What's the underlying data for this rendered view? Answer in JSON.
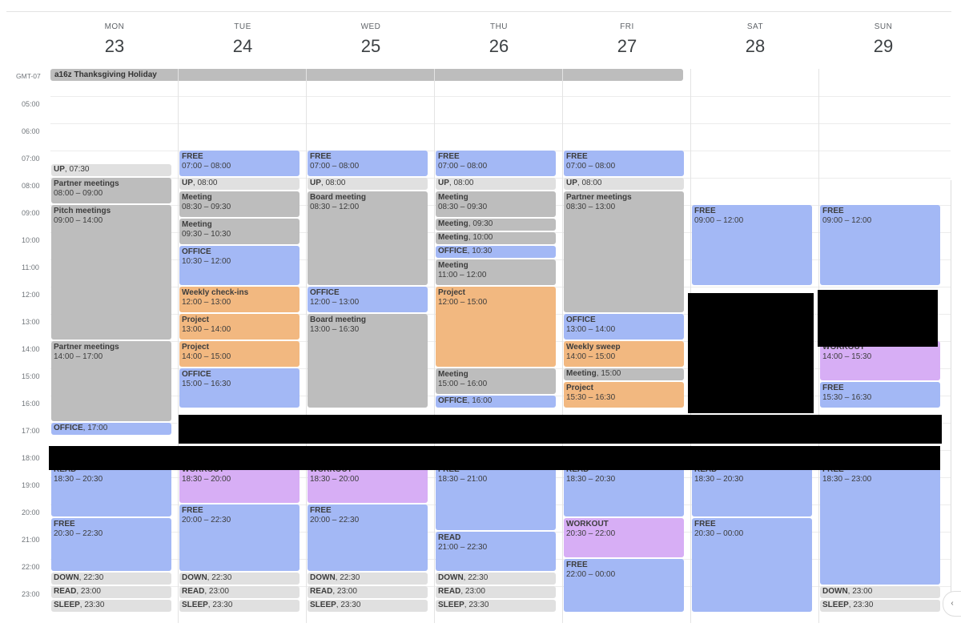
{
  "timezone": "GMT-07",
  "days": [
    {
      "dow": "MON",
      "num": "23"
    },
    {
      "dow": "TUE",
      "num": "24"
    },
    {
      "dow": "WED",
      "num": "25"
    },
    {
      "dow": "THU",
      "num": "26"
    },
    {
      "dow": "FRI",
      "num": "27"
    },
    {
      "dow": "SAT",
      "num": "28"
    },
    {
      "dow": "SUN",
      "num": "29"
    }
  ],
  "all_day_event": "a16z Thanksgiving Holiday",
  "time_labels": [
    "05:00",
    "06:00",
    "07:00",
    "08:00",
    "09:00",
    "10:00",
    "11:00",
    "12:00",
    "13:00",
    "14:00",
    "15:00",
    "16:00",
    "17:00",
    "18:00",
    "19:00",
    "20:00",
    "21:00",
    "22:00",
    "23:00"
  ],
  "events": [
    {
      "day": 0,
      "start": 7.5,
      "end": 8,
      "title": "UP",
      "time": "07:30",
      "color": "lgray",
      "inline": true
    },
    {
      "day": 0,
      "start": 8,
      "end": 9,
      "title": "Partner meetings",
      "time": "08:00 – 09:00",
      "color": "gray"
    },
    {
      "day": 0,
      "start": 9,
      "end": 14,
      "title": "Pitch meetings",
      "time": "09:00 – 14:00",
      "color": "gray"
    },
    {
      "day": 0,
      "start": 14,
      "end": 17,
      "title": "Partner meetings",
      "time": "14:00 – 17:00",
      "color": "gray"
    },
    {
      "day": 0,
      "start": 17,
      "end": 17.5,
      "title": "OFFICE",
      "time": "17:00",
      "color": "blue",
      "inline": true
    },
    {
      "day": 0,
      "start": 18.5,
      "end": 20.5,
      "title": "READ",
      "time": "18:30 – 20:30",
      "color": "blue"
    },
    {
      "day": 0,
      "start": 20.5,
      "end": 22.5,
      "title": "FREE",
      "time": "20:30 – 22:30",
      "color": "blue"
    },
    {
      "day": 0,
      "start": 22.5,
      "end": 23,
      "title": "DOWN",
      "time": "22:30",
      "color": "lgray",
      "inline": true
    },
    {
      "day": 0,
      "start": 23,
      "end": 23.5,
      "title": "READ",
      "time": "23:00",
      "color": "lgray",
      "inline": true
    },
    {
      "day": 0,
      "start": 23.5,
      "end": 24,
      "title": "SLEEP",
      "time": "23:30",
      "color": "lgray",
      "inline": true
    },
    {
      "day": 1,
      "start": 7,
      "end": 8,
      "title": "FREE",
      "time": "07:00 – 08:00",
      "color": "blue"
    },
    {
      "day": 1,
      "start": 8,
      "end": 8.5,
      "title": "UP",
      "time": "08:00",
      "color": "lgray",
      "inline": true
    },
    {
      "day": 1,
      "start": 8.5,
      "end": 9.5,
      "title": "Meeting",
      "time": "08:30 – 09:30",
      "color": "gray"
    },
    {
      "day": 1,
      "start": 9.5,
      "end": 10.5,
      "title": "Meeting",
      "time": "09:30 – 10:30",
      "color": "gray"
    },
    {
      "day": 1,
      "start": 10.5,
      "end": 12,
      "title": "OFFICE",
      "time": "10:30 – 12:00",
      "color": "blue"
    },
    {
      "day": 1,
      "start": 12,
      "end": 13,
      "title": "Weekly check-ins",
      "time": "12:00 – 13:00",
      "color": "orange"
    },
    {
      "day": 1,
      "start": 13,
      "end": 14,
      "title": "Project",
      "time": "13:00 – 14:00",
      "color": "orange"
    },
    {
      "day": 1,
      "start": 14,
      "end": 15,
      "title": "Project",
      "time": "14:00 – 15:00",
      "color": "orange"
    },
    {
      "day": 1,
      "start": 15,
      "end": 16.5,
      "title": "OFFICE",
      "time": "15:00 – 16:30",
      "color": "blue"
    },
    {
      "day": 1,
      "start": 18.5,
      "end": 20,
      "title": "WORKOUT",
      "time": "18:30 – 20:00",
      "color": "purple"
    },
    {
      "day": 1,
      "start": 20,
      "end": 22.5,
      "title": "FREE",
      "time": "20:00 – 22:30",
      "color": "blue"
    },
    {
      "day": 1,
      "start": 22.5,
      "end": 23,
      "title": "DOWN",
      "time": "22:30",
      "color": "lgray",
      "inline": true
    },
    {
      "day": 1,
      "start": 23,
      "end": 23.5,
      "title": "READ",
      "time": "23:00",
      "color": "lgray",
      "inline": true
    },
    {
      "day": 1,
      "start": 23.5,
      "end": 24,
      "title": "SLEEP",
      "time": "23:30",
      "color": "lgray",
      "inline": true
    },
    {
      "day": 2,
      "start": 7,
      "end": 8,
      "title": "FREE",
      "time": "07:00 – 08:00",
      "color": "blue"
    },
    {
      "day": 2,
      "start": 8,
      "end": 8.5,
      "title": "UP",
      "time": "08:00",
      "color": "lgray",
      "inline": true
    },
    {
      "day": 2,
      "start": 8.5,
      "end": 12,
      "title": "Board meeting",
      "time": "08:30 – 12:00",
      "color": "gray"
    },
    {
      "day": 2,
      "start": 12,
      "end": 13,
      "title": "OFFICE",
      "time": "12:00 – 13:00",
      "color": "blue"
    },
    {
      "day": 2,
      "start": 13,
      "end": 16.5,
      "title": "Board meeting",
      "time": "13:00 – 16:30",
      "color": "gray"
    },
    {
      "day": 2,
      "start": 18.5,
      "end": 20,
      "title": "WORKOUT",
      "time": "18:30 – 20:00",
      "color": "purple"
    },
    {
      "day": 2,
      "start": 20,
      "end": 22.5,
      "title": "FREE",
      "time": "20:00 – 22:30",
      "color": "blue"
    },
    {
      "day": 2,
      "start": 22.5,
      "end": 23,
      "title": "DOWN",
      "time": "22:30",
      "color": "lgray",
      "inline": true
    },
    {
      "day": 2,
      "start": 23,
      "end": 23.5,
      "title": "READ",
      "time": "23:00",
      "color": "lgray",
      "inline": true
    },
    {
      "day": 2,
      "start": 23.5,
      "end": 24,
      "title": "SLEEP",
      "time": "23:30",
      "color": "lgray",
      "inline": true
    },
    {
      "day": 3,
      "start": 7,
      "end": 8,
      "title": "FREE",
      "time": "07:00 – 08:00",
      "color": "blue"
    },
    {
      "day": 3,
      "start": 8,
      "end": 8.5,
      "title": "UP",
      "time": "08:00",
      "color": "lgray",
      "inline": true
    },
    {
      "day": 3,
      "start": 8.5,
      "end": 9.5,
      "title": "Meeting",
      "time": "08:30 – 09:30",
      "color": "gray"
    },
    {
      "day": 3,
      "start": 9.5,
      "end": 10,
      "title": "Meeting",
      "time": "09:30",
      "color": "gray",
      "inline": true
    },
    {
      "day": 3,
      "start": 10,
      "end": 10.5,
      "title": "Meeting",
      "time": "10:00",
      "color": "gray",
      "inline": true
    },
    {
      "day": 3,
      "start": 10.5,
      "end": 11,
      "title": "OFFICE",
      "time": "10:30",
      "color": "blue",
      "inline": true
    },
    {
      "day": 3,
      "start": 11,
      "end": 12,
      "title": "Meeting",
      "time": "11:00 – 12:00",
      "color": "gray"
    },
    {
      "day": 3,
      "start": 12,
      "end": 15,
      "title": "Project",
      "time": "12:00 – 15:00",
      "color": "orange"
    },
    {
      "day": 3,
      "start": 15,
      "end": 16,
      "title": "Meeting",
      "time": "15:00 – 16:00",
      "color": "gray"
    },
    {
      "day": 3,
      "start": 16,
      "end": 16.5,
      "title": "OFFICE",
      "time": "16:00",
      "color": "blue",
      "inline": true
    },
    {
      "day": 3,
      "start": 18.5,
      "end": 21,
      "title": "FREE",
      "time": "18:30 – 21:00",
      "color": "blue"
    },
    {
      "day": 3,
      "start": 21,
      "end": 22.5,
      "title": "READ",
      "time": "21:00 – 22:30",
      "color": "blue"
    },
    {
      "day": 3,
      "start": 22.5,
      "end": 23,
      "title": "DOWN",
      "time": "22:30",
      "color": "lgray",
      "inline": true
    },
    {
      "day": 3,
      "start": 23,
      "end": 23.5,
      "title": "READ",
      "time": "23:00",
      "color": "lgray",
      "inline": true
    },
    {
      "day": 3,
      "start": 23.5,
      "end": 24,
      "title": "SLEEP",
      "time": "23:30",
      "color": "lgray",
      "inline": true
    },
    {
      "day": 4,
      "start": 7,
      "end": 8,
      "title": "FREE",
      "time": "07:00 – 08:00",
      "color": "blue"
    },
    {
      "day": 4,
      "start": 8,
      "end": 8.5,
      "title": "UP",
      "time": "08:00",
      "color": "lgray",
      "inline": true
    },
    {
      "day": 4,
      "start": 8.5,
      "end": 13,
      "title": "Partner meetings",
      "time": "08:30 – 13:00",
      "color": "gray"
    },
    {
      "day": 4,
      "start": 13,
      "end": 14,
      "title": "OFFICE",
      "time": "13:00 – 14:00",
      "color": "blue"
    },
    {
      "day": 4,
      "start": 14,
      "end": 15,
      "title": "Weekly sweep",
      "time": "14:00 – 15:00",
      "color": "orange"
    },
    {
      "day": 4,
      "start": 15,
      "end": 15.5,
      "title": "Meeting",
      "time": "15:00",
      "color": "gray",
      "inline": true
    },
    {
      "day": 4,
      "start": 15.5,
      "end": 16.5,
      "title": "Project",
      "time": "15:30 – 16:30",
      "color": "orange"
    },
    {
      "day": 4,
      "start": 18.5,
      "end": 20.5,
      "title": "READ",
      "time": "18:30 – 20:30",
      "color": "blue"
    },
    {
      "day": 4,
      "start": 20.5,
      "end": 22,
      "title": "WORKOUT",
      "time": "20:30 – 22:00",
      "color": "purple"
    },
    {
      "day": 4,
      "start": 22,
      "end": 24,
      "title": "FREE",
      "time": "22:00 – 00:00",
      "color": "blue"
    },
    {
      "day": 5,
      "start": 9,
      "end": 12,
      "title": "FREE",
      "time": "09:00 – 12:00",
      "color": "blue"
    },
    {
      "day": 5,
      "start": 18.5,
      "end": 20.5,
      "title": "READ",
      "time": "18:30 – 20:30",
      "color": "blue"
    },
    {
      "day": 5,
      "start": 20.5,
      "end": 24,
      "title": "FREE",
      "time": "20:30 – 00:00",
      "color": "blue"
    },
    {
      "day": 6,
      "start": 9,
      "end": 12,
      "title": "FREE",
      "time": "09:00 – 12:00",
      "color": "blue"
    },
    {
      "day": 6,
      "start": 14,
      "end": 15.5,
      "title": "WORKOUT",
      "time": "14:00 – 15:30",
      "color": "purple"
    },
    {
      "day": 6,
      "start": 15.5,
      "end": 16.5,
      "title": "FREE",
      "time": "15:30 – 16:30",
      "color": "blue"
    },
    {
      "day": 6,
      "start": 18.5,
      "end": 23,
      "title": "FREE",
      "time": "18:30 – 23:00",
      "color": "blue"
    },
    {
      "day": 6,
      "start": 23,
      "end": 23.5,
      "title": "DOWN",
      "time": "23:00",
      "color": "lgray",
      "inline": true
    },
    {
      "day": 6,
      "start": 23.5,
      "end": 24,
      "title": "SLEEP",
      "time": "23:30",
      "color": "lgray",
      "inline": true
    }
  ],
  "scroll_icon": "chevron-left-icon"
}
